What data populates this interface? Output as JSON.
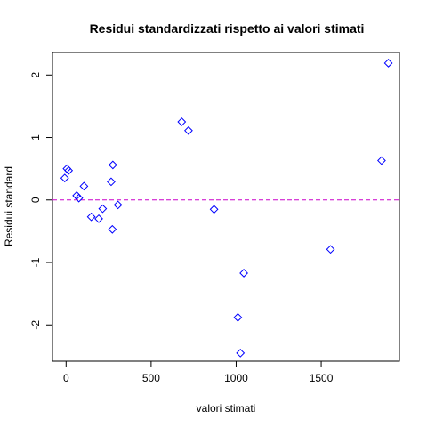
{
  "chart_data": {
    "type": "scatter",
    "title": "Residui standardizzati rispetto ai valori stimati",
    "xlabel": "valori stimati",
    "ylabel": "Residui standard",
    "xlim": [
      -80,
      1960
    ],
    "ylim": [
      -2.58,
      2.36
    ],
    "x_ticks": [
      0,
      500,
      1000,
      1500
    ],
    "x_tick_labels": [
      "0",
      "500",
      "1000",
      "1500"
    ],
    "y_ticks": [
      -2,
      -1,
      0,
      1,
      2
    ],
    "y_tick_labels": [
      "-2",
      "-1",
      "0",
      "1",
      "2"
    ],
    "grid": false,
    "legend": "none",
    "marker": "diamond",
    "colors": {
      "points": "#0000ff",
      "reference_line": "#cc00cc",
      "frame": "#000000"
    },
    "reference_line": {
      "y": 0,
      "style": "dashed"
    },
    "points": [
      {
        "x": -8,
        "y": 0.35
      },
      {
        "x": 5,
        "y": 0.5
      },
      {
        "x": 15,
        "y": 0.47
      },
      {
        "x": 62,
        "y": 0.07
      },
      {
        "x": 75,
        "y": 0.03
      },
      {
        "x": 105,
        "y": 0.22
      },
      {
        "x": 148,
        "y": -0.27
      },
      {
        "x": 192,
        "y": -0.3
      },
      {
        "x": 215,
        "y": -0.14
      },
      {
        "x": 265,
        "y": 0.29
      },
      {
        "x": 275,
        "y": 0.56
      },
      {
        "x": 272,
        "y": -0.47
      },
      {
        "x": 305,
        "y": -0.08
      },
      {
        "x": 680,
        "y": 1.25
      },
      {
        "x": 720,
        "y": 1.11
      },
      {
        "x": 870,
        "y": -0.15
      },
      {
        "x": 1010,
        "y": -1.88
      },
      {
        "x": 1025,
        "y": -2.45
      },
      {
        "x": 1045,
        "y": -1.17
      },
      {
        "x": 1555,
        "y": -0.79
      },
      {
        "x": 1855,
        "y": 0.63
      },
      {
        "x": 1895,
        "y": 2.19
      }
    ]
  }
}
